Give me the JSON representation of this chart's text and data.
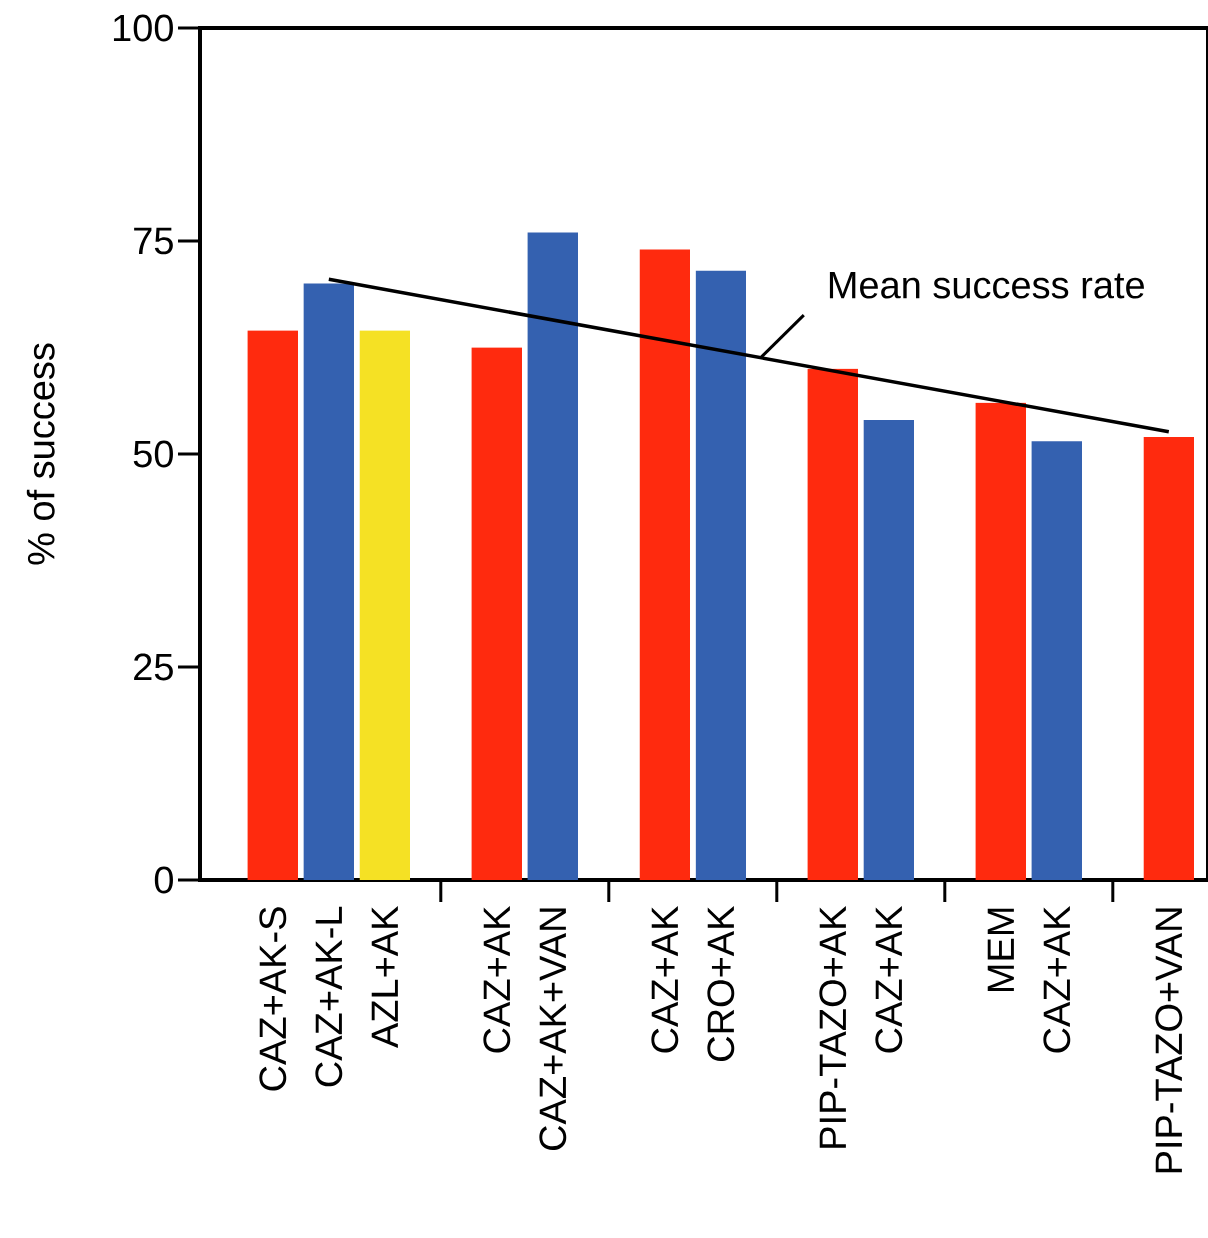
{
  "chart_data": {
    "type": "bar",
    "ylabel": "% of success",
    "categories": [
      "CAZ+AK-S",
      "CAZ+AK-L",
      "AZL+AK",
      null,
      "CAZ+AK",
      "CAZ+AK+VAN",
      null,
      "CAZ+AK",
      "CRO+AK",
      null,
      "PIP-TAZO+AK",
      "CAZ+AK",
      null,
      "MEM",
      "CAZ+AK",
      null,
      "PIP-TAZO+VAN"
    ],
    "series": [
      {
        "values": [
          64.5,
          70,
          64.5,
          null,
          62.5,
          76,
          null,
          74,
          71.5,
          null,
          60,
          54,
          null,
          56,
          51.5,
          null,
          52
        ],
        "colors": [
          "#ff2a0e",
          "#3461b0",
          "#f5e124",
          null,
          "#ff2a0e",
          "#3461b0",
          null,
          "#ff2a0e",
          "#3461b0",
          null,
          "#ff2a0e",
          "#3461b0",
          null,
          "#ff2a0e",
          "#3461b0",
          null,
          "#ff2a0e"
        ]
      },
      {
        "type": "line",
        "name": "Mean success rate",
        "values": [
          null,
          70.5,
          null,
          null,
          null,
          null,
          null,
          null,
          null,
          null,
          null,
          null,
          null,
          null,
          null,
          null,
          52.6
        ],
        "color": "#000000"
      }
    ],
    "ylim": [
      0,
      100
    ],
    "yticks": [
      0,
      25,
      50,
      75,
      100
    ]
  }
}
